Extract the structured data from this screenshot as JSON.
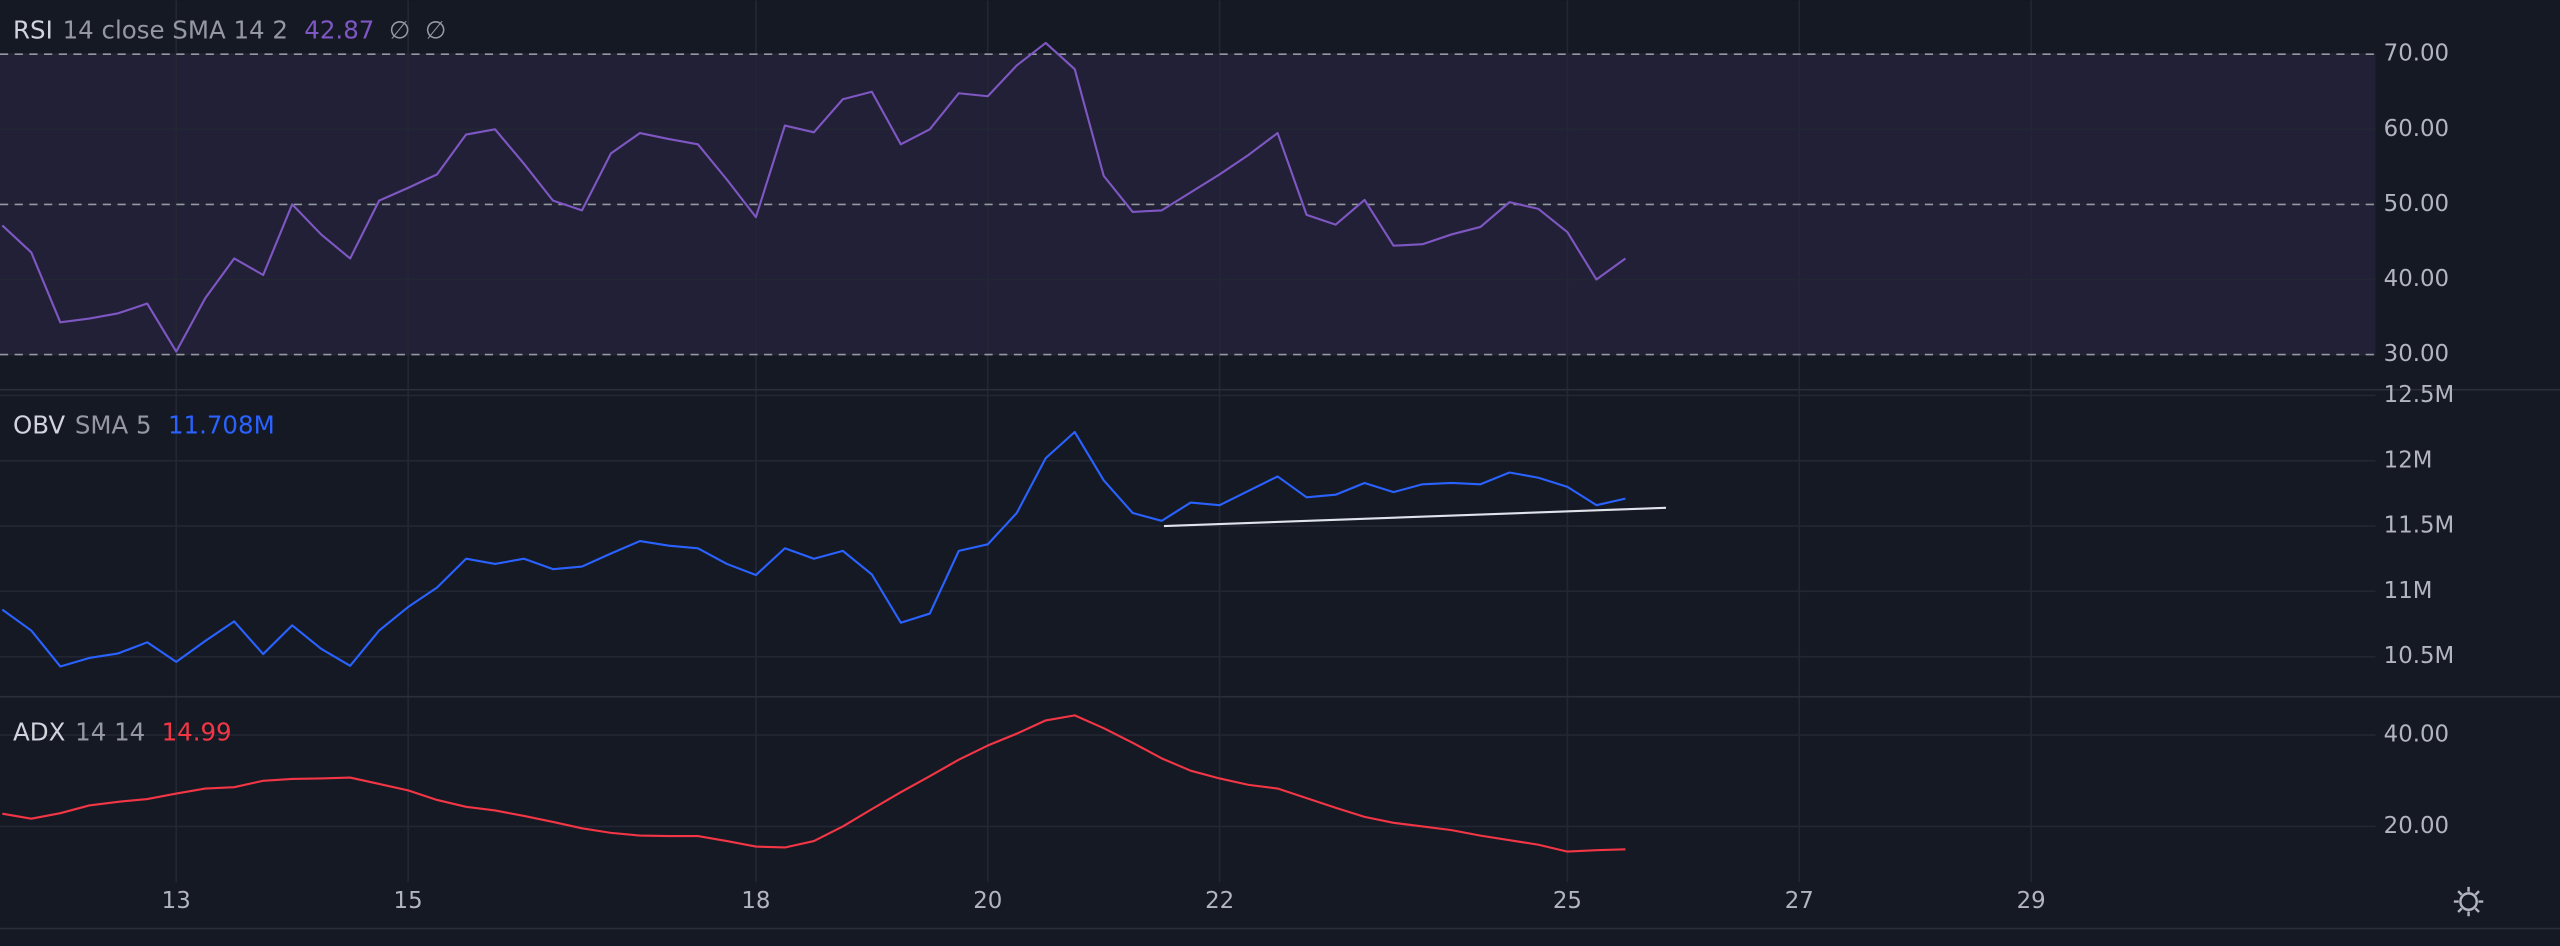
{
  "chart_data": [
    {
      "type": "line",
      "header": {
        "name": "RSI",
        "params": "14 close SMA 14 2",
        "value": "42.87",
        "extras": [
          "∅",
          "∅"
        ]
      },
      "series": [
        {
          "name": "RSI",
          "color": "#7e57c2",
          "values": [
            47.2,
            43.6,
            34.3,
            34.8,
            35.5,
            36.8,
            30.4,
            37.5,
            42.8,
            40.6,
            50,
            46,
            42.8,
            50.5,
            52.2,
            54,
            59.3,
            60,
            55.4,
            50.5,
            49.2,
            56.8,
            59.5,
            58.7,
            58,
            53.3,
            48.3,
            60.5,
            59.6,
            64,
            65,
            58,
            60,
            64.8,
            64.4,
            68.5,
            71.5,
            68,
            53.8,
            49,
            49.2,
            51.6,
            54,
            56.6,
            59.5,
            48.6,
            47.3,
            50.6,
            44.5,
            44.7,
            46,
            47,
            50.3,
            49.4,
            46.3,
            40,
            42.8
          ]
        }
      ],
      "x": [
        11.5,
        11.75,
        12,
        12.25,
        12.5,
        12.75,
        13,
        13.25,
        13.5,
        13.75,
        14,
        14.25,
        14.5,
        14.75,
        15,
        15.25,
        15.5,
        15.75,
        16,
        16.25,
        16.5,
        16.75,
        17,
        17.25,
        17.5,
        17.75,
        18,
        18.25,
        18.5,
        18.75,
        19,
        19.25,
        19.5,
        19.75,
        20,
        20.25,
        20.5,
        20.75,
        21,
        21.25,
        21.5,
        21.75,
        22,
        22.25,
        22.5,
        22.75,
        23,
        23.25,
        23.5,
        23.75,
        24,
        24.25,
        24.5,
        24.75,
        25,
        25.25,
        25.5
      ],
      "xlim": [
        11.48,
        31.97
      ],
      "ylim": [
        25.43,
        77.17
      ],
      "yticks": [
        {
          "value": 30,
          "label": "30.00"
        },
        {
          "value": 40,
          "label": "40.00"
        },
        {
          "value": 50,
          "label": "50.00"
        },
        {
          "value": 60,
          "label": "60.00"
        },
        {
          "value": 70,
          "label": "70.00"
        }
      ],
      "band": [
        30,
        70
      ],
      "band_color": "#7e57c2",
      "hlines": [
        30,
        50,
        70
      ],
      "grid": true
    },
    {
      "type": "line",
      "header": {
        "name": "OBV",
        "params": "SMA 5",
        "value": "11.708M"
      },
      "series": [
        {
          "name": "OBV",
          "color": "#2962ff",
          "values": [
            10860000,
            10700000,
            10425000,
            10490000,
            10525000,
            10610000,
            10460000,
            10620000,
            10770000,
            10520000,
            10740000,
            10560000,
            10430000,
            10700000,
            10880000,
            11030000,
            11250000,
            11210000,
            11250000,
            11170000,
            11190000,
            11290000,
            11385000,
            11350000,
            11330000,
            11210000,
            11125000,
            11330000,
            11250000,
            11310000,
            11130000,
            10760000,
            10830000,
            11310000,
            11360000,
            11600000,
            12020000,
            12220000,
            11850000,
            11600000,
            11540000,
            11680000,
            11660000,
            11770000,
            11880000,
            11720000,
            11740000,
            11830000,
            11760000,
            11820000,
            11830000,
            11820000,
            11910000,
            11870000,
            11800000,
            11660000,
            11710000
          ]
        }
      ],
      "x": [
        11.5,
        11.75,
        12,
        12.25,
        12.5,
        12.75,
        13,
        13.25,
        13.5,
        13.75,
        14,
        14.25,
        14.5,
        14.75,
        15,
        15.25,
        15.5,
        15.75,
        16,
        16.25,
        16.5,
        16.75,
        17,
        17.25,
        17.5,
        17.75,
        18,
        18.25,
        18.5,
        18.75,
        19,
        19.25,
        19.5,
        19.75,
        20,
        20.25,
        20.5,
        20.75,
        21,
        21.25,
        21.5,
        21.75,
        22,
        22.25,
        22.5,
        22.75,
        23,
        23.25,
        23.5,
        23.75,
        24,
        24.25,
        24.5,
        24.75,
        25,
        25.25,
        25.5
      ],
      "trendline": {
        "color": "#e0e3eb",
        "x": [
          21.52,
          25.85
        ],
        "values": [
          11500000,
          11640000
        ]
      },
      "xlim": [
        11.48,
        31.97
      ],
      "ylim": [
        10200000,
        12537500
      ],
      "yticks": [
        {
          "value": 10500000,
          "label": "10.5M"
        },
        {
          "value": 11000000,
          "label": "11M"
        },
        {
          "value": 11500000,
          "label": "11.5M"
        },
        {
          "value": 12000000,
          "label": "12M"
        },
        {
          "value": 12500000,
          "label": "12.5M"
        }
      ],
      "grid": true
    },
    {
      "type": "line",
      "header": {
        "name": "ADX",
        "params": "14 14",
        "value": "14.99"
      },
      "series": [
        {
          "name": "ADX",
          "color": "#f23645",
          "values": [
            22.8,
            21.7,
            22.9,
            24.6,
            25.4,
            26,
            27.2,
            28.3,
            28.6,
            30,
            30.4,
            30.5,
            30.7,
            29.3,
            27.9,
            25.8,
            24.3,
            23.5,
            22.3,
            21,
            19.6,
            18.6,
            18,
            17.9,
            17.9,
            16.8,
            15.6,
            15.4,
            16.8,
            20,
            23.8,
            27.5,
            31,
            34.6,
            37.7,
            40.3,
            43.2,
            44.3,
            41.5,
            38.3,
            34.9,
            32.2,
            30.5,
            29.1,
            28.3,
            26.2,
            24.1,
            22.1,
            20.8,
            20,
            19.2,
            18,
            17,
            16,
            14.5,
            14.8,
            15
          ]
        }
      ],
      "x": [
        11.5,
        11.75,
        12,
        12.25,
        12.5,
        12.75,
        13,
        13.25,
        13.5,
        13.75,
        14,
        14.25,
        14.5,
        14.75,
        15,
        15.25,
        15.5,
        15.75,
        16,
        16.25,
        16.5,
        16.75,
        17,
        17.25,
        17.5,
        17.75,
        18,
        18.25,
        18.5,
        18.75,
        19,
        19.25,
        19.5,
        19.75,
        20,
        20.25,
        20.5,
        20.75,
        21,
        21.25,
        21.5,
        21.75,
        22,
        22.25,
        22.5,
        22.75,
        23,
        23.25,
        23.5,
        23.75,
        24,
        24.25,
        24.5,
        24.75,
        25,
        25.25,
        25.5
      ],
      "xlim": [
        11.48,
        31.97
      ],
      "xticks": [
        13,
        15,
        18,
        20,
        22,
        25,
        27,
        29
      ],
      "ylim": [
        7.86,
        48.21
      ],
      "yticks": [
        {
          "value": 20,
          "label": "20.00"
        },
        {
          "value": 40,
          "label": "40.00"
        }
      ],
      "grid": true
    }
  ]
}
